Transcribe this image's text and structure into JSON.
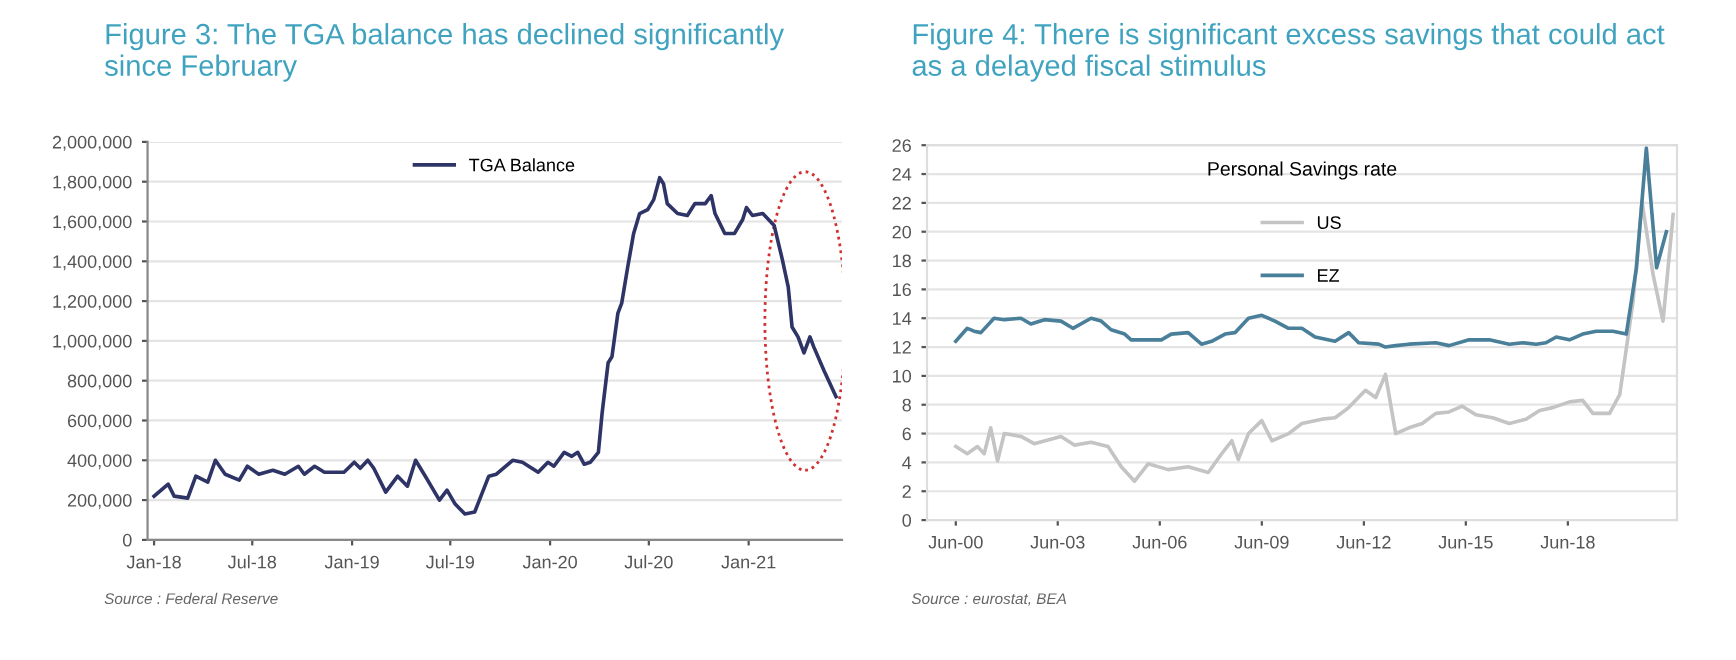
{
  "chart_data": [
    {
      "type": "line",
      "title": "Figure 3: The TGA balance has declined significantly since February",
      "legend": "top",
      "grid": "y",
      "x": [
        "2018-01-01",
        "2018-01-27",
        "2018-02-07",
        "2018-03-04",
        "2018-03-19",
        "2018-04-10",
        "2018-04-24",
        "2018-05-12",
        "2018-06-07",
        "2018-06-22",
        "2018-07-13",
        "2018-08-08",
        "2018-08-30",
        "2018-09-24",
        "2018-10-05",
        "2018-10-24",
        "2018-11-11",
        "2018-12-17",
        "2019-01-05",
        "2019-01-16",
        "2019-01-30",
        "2019-02-10",
        "2019-03-04",
        "2019-03-26",
        "2019-04-13",
        "2019-04-28",
        "2019-05-16",
        "2019-06-11",
        "2019-06-25",
        "2019-07-10",
        "2019-07-28",
        "2019-08-15",
        "2019-09-10",
        "2019-09-24",
        "2019-10-24",
        "2019-11-11",
        "2019-12-10",
        "2019-12-28",
        "2020-01-08",
        "2020-01-27",
        "2020-02-10",
        "2020-02-21",
        "2020-03-04",
        "2020-03-15",
        "2020-03-30",
        "2020-04-06",
        "2020-04-17",
        "2020-04-24",
        "2020-05-05",
        "2020-05-12",
        "2020-05-23",
        "2020-06-03",
        "2020-06-14",
        "2020-06-29",
        "2020-07-10",
        "2020-07-21",
        "2020-07-28",
        "2020-08-04",
        "2020-08-23",
        "2020-09-10",
        "2020-09-24",
        "2020-10-13",
        "2020-10-24",
        "2020-10-31",
        "2020-11-18",
        "2020-12-06",
        "2020-12-21",
        "2020-12-28",
        "2021-01-08",
        "2021-01-27",
        "2021-02-17",
        "2021-03-04",
        "2021-03-15",
        "2021-03-22",
        "2021-04-02",
        "2021-04-13",
        "2021-04-24",
        "2021-05-01",
        "2021-05-20",
        "2021-06-11"
      ],
      "series": [
        {
          "name": "TGA Balance",
          "color": "#2e3466",
          "values": [
            220000,
            280000,
            220000,
            210000,
            320000,
            290000,
            400000,
            330000,
            300000,
            370000,
            330000,
            350000,
            330000,
            370000,
            330000,
            370000,
            340000,
            340000,
            390000,
            360000,
            400000,
            360000,
            240000,
            320000,
            270000,
            400000,
            320000,
            200000,
            250000,
            180000,
            130000,
            140000,
            320000,
            330000,
            400000,
            390000,
            340000,
            390000,
            370000,
            440000,
            420000,
            440000,
            380000,
            390000,
            440000,
            640000,
            890000,
            920000,
            1140000,
            1190000,
            1370000,
            1540000,
            1640000,
            1660000,
            1710000,
            1820000,
            1790000,
            1690000,
            1640000,
            1630000,
            1690000,
            1690000,
            1730000,
            1640000,
            1540000,
            1540000,
            1610000,
            1670000,
            1630000,
            1640000,
            1580000,
            1410000,
            1270000,
            1070000,
            1020000,
            940000,
            1020000,
            970000,
            850000,
            720000
          ]
        }
      ],
      "xlim": [
        "2017-12-20",
        "2021-06-22"
      ],
      "xticks": [
        {
          "value": "2018-01-01",
          "label": "Jan-18"
        },
        {
          "value": "2018-07-01",
          "label": "Jul-18"
        },
        {
          "value": "2019-01-01",
          "label": "Jan-19"
        },
        {
          "value": "2019-07-01",
          "label": "Jul-19"
        },
        {
          "value": "2020-01-01",
          "label": "Jan-20"
        },
        {
          "value": "2020-07-01",
          "label": "Jul-20"
        },
        {
          "value": "2021-01-01",
          "label": "Jan-21"
        }
      ],
      "ylim": [
        0,
        2000000
      ],
      "yticks": [
        0,
        {
          "value": 200000,
          "label": "200,000"
        },
        {
          "value": 400000,
          "label": "400,000"
        },
        {
          "value": 600000,
          "label": "600,000"
        },
        {
          "value": 800000,
          "label": "800,000"
        },
        {
          "value": 1000000,
          "label": "1,000,000"
        },
        {
          "value": 1200000,
          "label": "1,200,000"
        },
        {
          "value": 1400000,
          "label": "1,400,000"
        },
        {
          "value": 1600000,
          "label": "1,600,000"
        },
        {
          "value": 1800000,
          "label": "1,800,000"
        },
        {
          "value": 2000000,
          "label": "2,000,000"
        }
      ],
      "annotations": [
        "Source : Federal Reserve"
      ]
    },
    {
      "type": "line",
      "title": "Figure 4: There is significant excess savings that could act as a delayed fiscal stimulus",
      "legend": "top",
      "legend_title": "Personal Savings rate",
      "grid": "y",
      "series": [
        {
          "name": "US",
          "color": "#c4c4c4",
          "x": [
            "2000-06-30",
            "2000-10-31",
            "2001-02-17",
            "2001-05-01",
            "2001-07-10",
            "2001-09-21",
            "2001-12-03",
            "2002-05-31",
            "2002-10-20",
            "2003-08-04",
            "2003-12-25",
            "2004-06-22",
            "2004-12-21",
            "2005-05-12",
            "2005-10-02",
            "2006-02-25",
            "2006-09-28",
            "2007-05-01",
            "2007-12-03",
            "2008-04-24",
            "2008-08-12",
            "2008-10-20",
            "2009-02-07",
            "2009-06-29",
            "2009-10-16",
            "2010-04-13",
            "2010-09-03",
            "2011-04-06",
            "2011-08-26",
            "2012-01-19",
            "2012-07-17",
            "2012-11-04",
            "2013-02-17",
            "2013-06-07",
            "2013-10-27",
            "2014-03-19",
            "2014-08-12",
            "2015-01-01",
            "2015-05-23",
            "2015-10-16",
            "2016-04-13",
            "2016-10-09",
            "2017-04-06",
            "2017-08-30",
            "2018-01-19",
            "2018-07-17",
            "2018-12-06",
            "2019-03-26",
            "2019-09-21",
            "2020-01-08",
            "2020-05-31",
            "2020-09-03",
            "2021-01-01",
            "2021-04-17",
            "2021-08-04"
          ],
          "values": [
            5.1,
            4.6,
            5.1,
            4.6,
            6.4,
            4.1,
            6.0,
            5.8,
            5.3,
            5.8,
            5.2,
            5.4,
            5.1,
            3.7,
            2.7,
            3.9,
            3.5,
            3.7,
            3.3,
            4.6,
            5.5,
            4.2,
            6.0,
            6.9,
            5.5,
            6.0,
            6.7,
            7.0,
            7.1,
            7.8,
            9.0,
            8.5,
            10.1,
            6.0,
            6.4,
            6.7,
            7.4,
            7.5,
            7.9,
            7.3,
            7.1,
            6.7,
            7.0,
            7.6,
            7.8,
            8.2,
            8.3,
            7.4,
            7.4,
            8.7,
            15.2,
            22.1,
            17.0,
            13.8,
            21.2
          ]
        },
        {
          "name": "EZ",
          "color": "#4a7f9a",
          "x": [
            "2000-06-30",
            "2000-10-31",
            "2001-01-12",
            "2001-03-26",
            "2001-08-15",
            "2001-12-03",
            "2002-05-31",
            "2002-09-14",
            "2003-02-07",
            "2003-08-04",
            "2003-12-10",
            "2004-06-22",
            "2004-10-09",
            "2005-01-23",
            "2005-06-18",
            "2005-08-26",
            "2005-12-14",
            "2006-07-17",
            "2006-10-31",
            "2007-05-01",
            "2007-09-21",
            "2008-01-08",
            "2008-05-31",
            "2008-09-14",
            "2009-02-07",
            "2009-06-29",
            "2009-11-18",
            "2010-04-13",
            "2010-09-03",
            "2011-01-23",
            "2011-08-26",
            "2012-01-19",
            "2012-05-05",
            "2012-12-06",
            "2013-02-17",
            "2013-06-07",
            "2013-10-27",
            "2014-08-12",
            "2015-01-01",
            "2015-08-04",
            "2016-03-08",
            "2016-10-09",
            "2017-02-28",
            "2017-07-24",
            "2017-11-07",
            "2018-02-25",
            "2018-07-17",
            "2018-12-06",
            "2019-05-01",
            "2019-10-27",
            "2020-03-19",
            "2020-07-06",
            "2020-10-20",
            "2021-02-07",
            "2021-05-23"
          ],
          "values": [
            12.4,
            13.3,
            13.1,
            13.0,
            14.0,
            13.9,
            14.0,
            13.6,
            13.9,
            13.8,
            13.3,
            14.0,
            13.8,
            13.2,
            12.9,
            12.5,
            12.5,
            12.5,
            12.9,
            13.0,
            12.2,
            12.4,
            12.9,
            13.0,
            14.0,
            14.2,
            13.8,
            13.3,
            13.3,
            12.7,
            12.4,
            13.0,
            12.3,
            12.2,
            12.0,
            12.1,
            12.2,
            12.3,
            12.1,
            12.5,
            12.5,
            12.2,
            12.3,
            12.2,
            12.3,
            12.7,
            12.5,
            12.9,
            13.1,
            13.1,
            12.9,
            17.5,
            25.8,
            17.5,
            20.0
          ]
        }
      ],
      "xlim": [
        "1999-08-26",
        "2021-09-14"
      ],
      "xticks": [
        {
          "value": "2000-06-30",
          "label": "Jun-00"
        },
        {
          "value": "2003-06-30",
          "label": "Jun-03"
        },
        {
          "value": "2006-06-30",
          "label": "Jun-06"
        },
        {
          "value": "2009-06-30",
          "label": "Jun-09"
        },
        {
          "value": "2012-06-30",
          "label": "Jun-12"
        },
        {
          "value": "2015-06-30",
          "label": "Jun-15"
        },
        {
          "value": "2018-06-30",
          "label": "Jun-18"
        }
      ],
      "ylim": [
        0,
        26
      ],
      "yticks": [
        0,
        2,
        4,
        6,
        8,
        10,
        12,
        14,
        16,
        18,
        20,
        22,
        24,
        26
      ],
      "annotations": [
        "Source : eurostat, BEA"
      ]
    }
  ]
}
